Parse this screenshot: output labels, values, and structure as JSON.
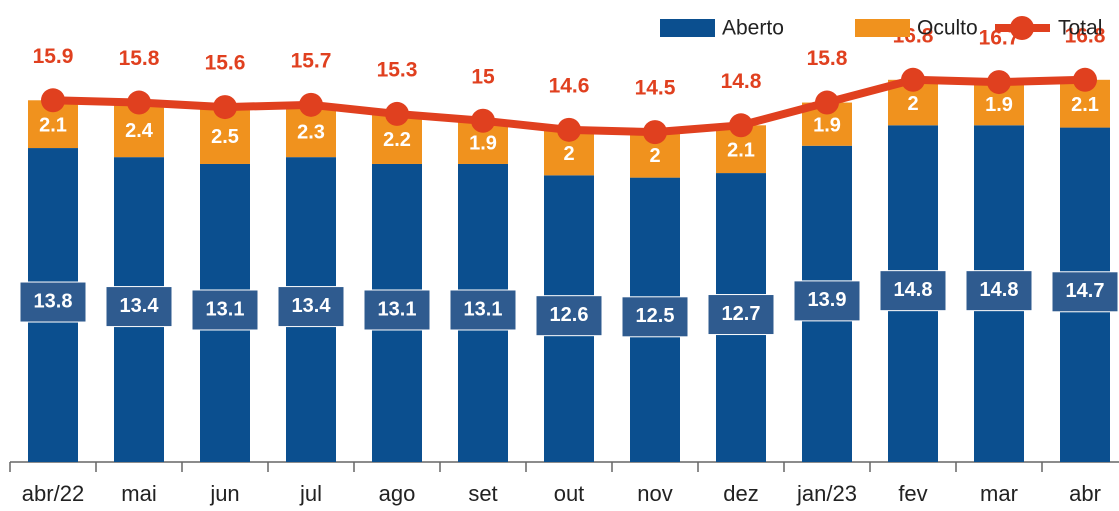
{
  "chart_data": {
    "type": "stacked_bar_line",
    "categories": [
      "abr/22",
      "mai",
      "jun",
      "jul",
      "ago",
      "set",
      "out",
      "nov",
      "dez",
      "jan/23",
      "fev",
      "mar",
      "abr"
    ],
    "series": [
      {
        "name": "Aberto",
        "color": "#0b4f8f",
        "kind": "bar",
        "values": [
          13.8,
          13.4,
          13.1,
          13.4,
          13.1,
          13.1,
          12.6,
          12.5,
          12.7,
          13.9,
          14.8,
          14.8,
          14.7
        ]
      },
      {
        "name": "Oculto",
        "color": "#f0921e",
        "kind": "bar",
        "values": [
          2.1,
          2.4,
          2.5,
          2.3,
          2.2,
          1.9,
          2.0,
          2.0,
          2.1,
          1.9,
          2.0,
          1.9,
          2.1
        ]
      },
      {
        "name": "Total",
        "color": "#e0401f",
        "kind": "line",
        "values": [
          15.9,
          15.8,
          15.6,
          15.7,
          15.3,
          15.0,
          14.6,
          14.5,
          14.8,
          15.8,
          16.8,
          16.7,
          16.8
        ]
      }
    ],
    "ylim": [
      0,
      20
    ]
  }
}
